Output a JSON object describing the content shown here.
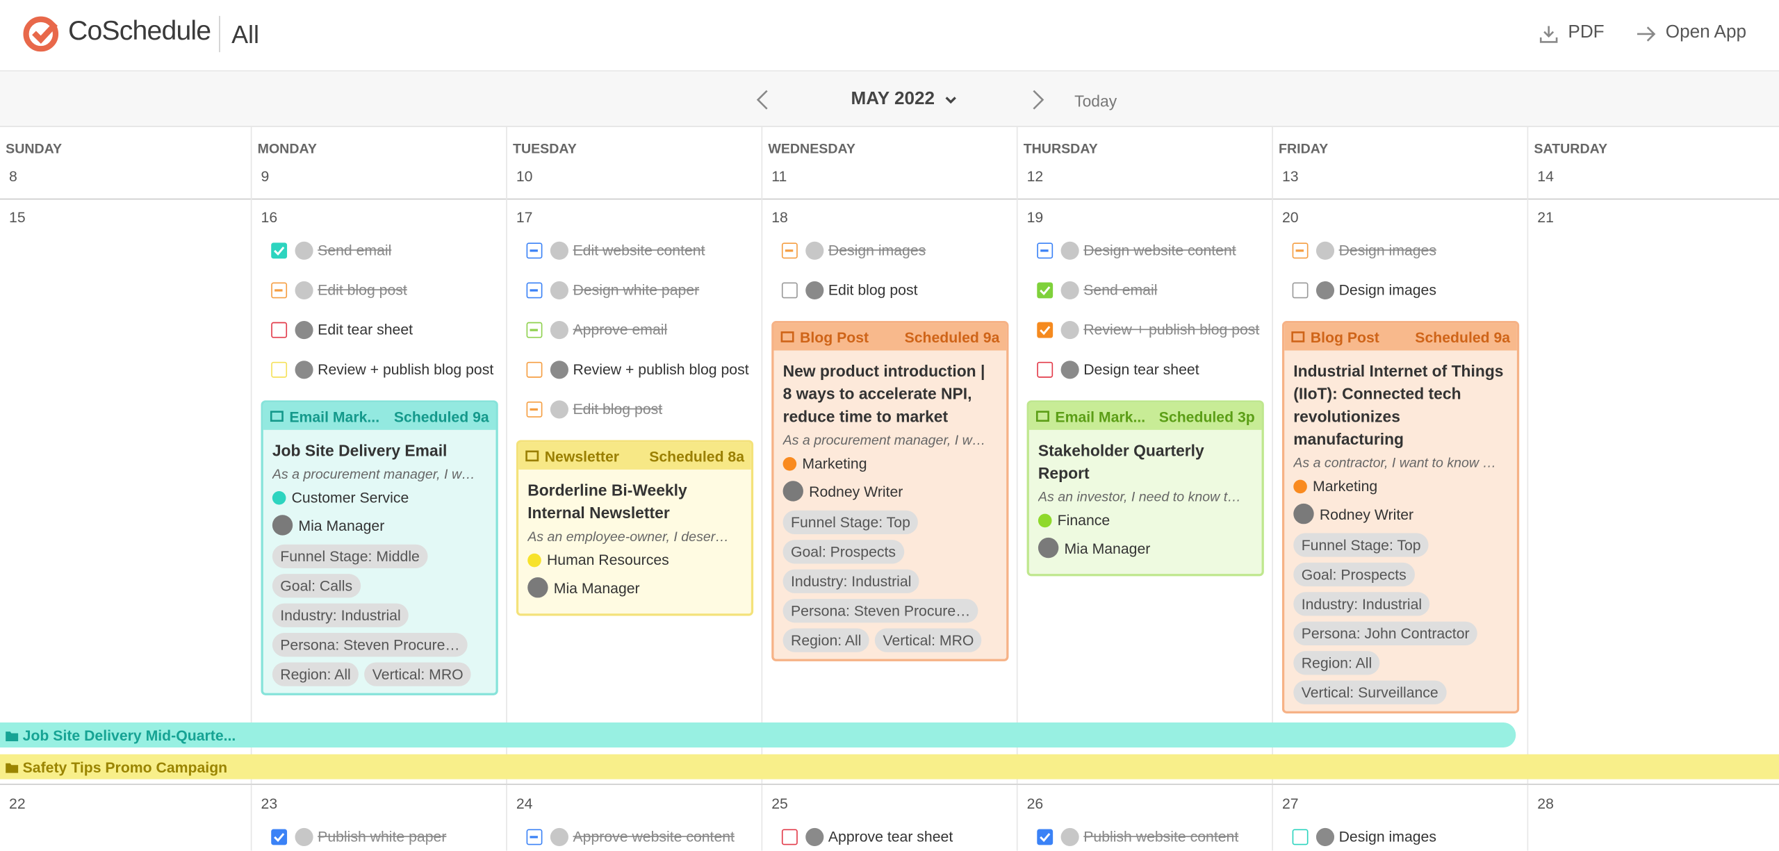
{
  "header": {
    "brand": "CoSchedule",
    "view": "All",
    "pdf": "PDF",
    "open_app": "Open App"
  },
  "nav": {
    "month": "MAY 2022",
    "today": "Today"
  },
  "weekdays": [
    {
      "name": "SUNDAY",
      "date": "8"
    },
    {
      "name": "MONDAY",
      "date": "9"
    },
    {
      "name": "TUESDAY",
      "date": "10"
    },
    {
      "name": "WEDNESDAY",
      "date": "11"
    },
    {
      "name": "THURSDAY",
      "date": "12"
    },
    {
      "name": "FRIDAY",
      "date": "13"
    },
    {
      "name": "SATURDAY",
      "date": "14"
    }
  ],
  "weeks": [
    {
      "days": [
        {
          "date": "15",
          "tasks": [],
          "cards": []
        },
        {
          "date": "16",
          "tasks": [
            {
              "title": "Send email",
              "state": "checked",
              "done": true,
              "color": "#2dd4bf"
            },
            {
              "title": "Edit blog post",
              "state": "dash",
              "done": true,
              "color": "#f59e42"
            },
            {
              "title": "Edit tear sheet",
              "state": "empty",
              "done": false,
              "color": "#e23b4a"
            },
            {
              "title": "Review + publish blog post",
              "state": "empty",
              "done": false,
              "color": "#f5e15a"
            }
          ],
          "cards": [
            {
              "type": "Email Mark...",
              "time": "Scheduled 9a",
              "title": "Job Site Delivery Email",
              "excerpt": "As a procurement manager, I w…",
              "team": "Customer Service",
              "team_color": "#2dd4bf",
              "owner": "Mia Manager",
              "tags": [
                "Funnel Stage: Middle",
                "Goal: Calls",
                "Industry: Industrial",
                "Persona: Steven Procure…",
                "Region: All",
                "Vertical: MRO"
              ],
              "theme": {
                "border": "#86e3da",
                "head": "#93e9e0",
                "text": "#14998b",
                "body": "#e3f9f6"
              }
            }
          ]
        },
        {
          "date": "17",
          "tasks": [
            {
              "title": "Edit website content",
              "state": "dash",
              "done": true,
              "color": "#3b82f6"
            },
            {
              "title": "Design white paper",
              "state": "dash",
              "done": true,
              "color": "#3b82f6"
            },
            {
              "title": "Approve email",
              "state": "dash",
              "done": true,
              "color": "#8fd14f"
            },
            {
              "title": "Review + publish blog post",
              "state": "empty",
              "done": false,
              "color": "#f59e42"
            },
            {
              "title": "Edit blog post",
              "state": "dash",
              "done": true,
              "color": "#f59e42"
            }
          ],
          "cards": [
            {
              "type": "Newsletter",
              "time": "Scheduled 8a",
              "title": "Borderline Bi-Weekly Internal Newsletter",
              "excerpt": "As an employee-owner, I deser…",
              "team": "Human Resources",
              "team_color": "#f7e22a",
              "owner": "Mia Manager",
              "tags": [],
              "theme": {
                "border": "#f4e27a",
                "head": "#f7e886",
                "text": "#9a7f00",
                "body": "#fffbe2"
              }
            }
          ]
        },
        {
          "date": "18",
          "tasks": [
            {
              "title": "Design images",
              "state": "dash",
              "done": true,
              "color": "#f59e42"
            },
            {
              "title": "Edit blog post",
              "state": "empty",
              "done": false,
              "color": "#999999"
            }
          ],
          "cards": [
            {
              "type": "Blog Post",
              "time": "Scheduled 9a",
              "title": "New product introduction | 8 ways to accelerate NPI, reduce time to market",
              "excerpt": "As a procurement manager, I w…",
              "team": "Marketing",
              "team_color": "#f98a1f",
              "owner": "Rodney Writer",
              "tags": [
                "Funnel Stage: Top",
                "Goal: Prospects",
                "Industry: Industrial",
                "Persona: Steven Procure…",
                "Region: All",
                "Vertical: MRO"
              ],
              "theme": {
                "border": "#f6b286",
                "head": "#f8b98c",
                "text": "#cf6418",
                "body": "#fde9da"
              }
            }
          ]
        },
        {
          "date": "19",
          "tasks": [
            {
              "title": "Design website content",
              "state": "dash",
              "done": true,
              "color": "#3b82f6"
            },
            {
              "title": "Send email",
              "state": "checked",
              "done": true,
              "color": "#7fd13b"
            },
            {
              "title": "Review + publish blog post",
              "state": "checked",
              "done": true,
              "color": "#f58a1f"
            },
            {
              "title": "Design tear sheet",
              "state": "empty",
              "done": false,
              "color": "#e23b4a"
            }
          ],
          "cards": [
            {
              "type": "Email Mark...",
              "time": "Scheduled 3p",
              "title": "Stakeholder Quarterly Report",
              "excerpt": "As an investor, I need to know t…",
              "team": "Finance",
              "team_color": "#8fd92b",
              "owner": "Mia Manager",
              "tags": [],
              "theme": {
                "border": "#bfe78e",
                "head": "#c8ec96",
                "text": "#5b9e16",
                "body": "#eefae0"
              }
            }
          ]
        },
        {
          "date": "20",
          "tasks": [
            {
              "title": "Design images",
              "state": "dash",
              "done": true,
              "color": "#f59e42"
            },
            {
              "title": "Design images",
              "state": "empty",
              "done": false,
              "color": "#999999"
            }
          ],
          "cards": [
            {
              "type": "Blog Post",
              "time": "Scheduled 9a",
              "title": "Industrial Internet of Things (IIoT): Connected tech revolutionizes manufacturing",
              "excerpt": "As a contractor, I want to know …",
              "team": "Marketing",
              "team_color": "#f98a1f",
              "owner": "Rodney Writer",
              "tags": [
                "Funnel Stage: Top",
                "Goal: Prospects",
                "Industry: Industrial",
                "Persona: John Contractor",
                "Region: All",
                "Vertical: Surveillance"
              ],
              "theme": {
                "border": "#f6b286",
                "head": "#f8b98c",
                "text": "#cf6418",
                "body": "#fde9da"
              }
            }
          ]
        },
        {
          "date": "21",
          "tasks": [],
          "cards": []
        }
      ],
      "campaigns": [
        {
          "name": "Job Site Delivery Mid-Quarte...",
          "color": "#98f0e2",
          "text": "#16a394",
          "days": 6
        },
        {
          "name": "Safety Tips Promo Campaign",
          "color": "#f8ef8a",
          "text": "#9a8400",
          "days": 7
        }
      ]
    },
    {
      "days": [
        {
          "date": "22",
          "tasks": [],
          "cards": []
        },
        {
          "date": "23",
          "tasks": [
            {
              "title": "Publish white paper",
              "state": "checked",
              "done": true,
              "color": "#3b82f6"
            }
          ],
          "cards": []
        },
        {
          "date": "24",
          "tasks": [
            {
              "title": "Approve website content",
              "state": "dash",
              "done": true,
              "color": "#3b82f6"
            }
          ],
          "cards": []
        },
        {
          "date": "25",
          "tasks": [
            {
              "title": "Approve tear sheet",
              "state": "empty",
              "done": false,
              "color": "#e23b4a"
            }
          ],
          "cards": []
        },
        {
          "date": "26",
          "tasks": [
            {
              "title": "Publish website content",
              "state": "checked",
              "done": true,
              "color": "#3b82f6"
            }
          ],
          "cards": []
        },
        {
          "date": "27",
          "tasks": [
            {
              "title": "Design images",
              "state": "empty",
              "done": false,
              "color": "#2dd4bf"
            }
          ],
          "cards": []
        },
        {
          "date": "28",
          "tasks": [],
          "cards": []
        }
      ],
      "campaigns": []
    }
  ]
}
